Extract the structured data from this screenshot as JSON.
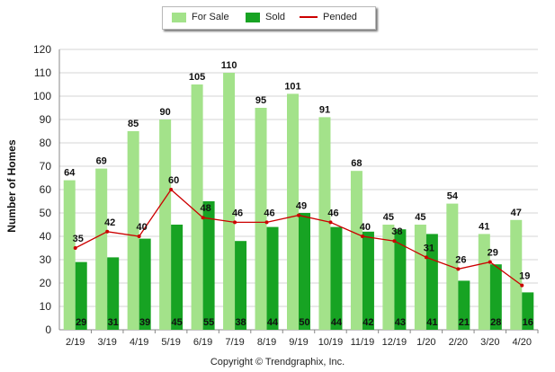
{
  "chart_data": {
    "type": "bar",
    "categories": [
      "2/19",
      "3/19",
      "4/19",
      "5/19",
      "6/19",
      "7/19",
      "8/19",
      "9/19",
      "10/19",
      "11/19",
      "12/19",
      "1/20",
      "2/20",
      "3/20",
      "4/20"
    ],
    "series": [
      {
        "name": "For Sale",
        "type": "bar",
        "color": "#a3e28a",
        "values": [
          64,
          69,
          85,
          90,
          105,
          110,
          95,
          101,
          91,
          68,
          45,
          45,
          54,
          41,
          47
        ]
      },
      {
        "name": "Sold",
        "type": "bar",
        "color": "#17a323",
        "values": [
          29,
          31,
          39,
          45,
          55,
          38,
          44,
          50,
          44,
          42,
          43,
          41,
          21,
          28,
          16
        ]
      },
      {
        "name": "Pended",
        "type": "line",
        "color": "#cc0000",
        "values": [
          35,
          42,
          40,
          60,
          48,
          46,
          46,
          49,
          46,
          40,
          38,
          31,
          26,
          29,
          19
        ]
      }
    ],
    "title": "",
    "xlabel": "",
    "ylabel": "Number of Homes",
    "ylim": [
      0,
      120
    ],
    "yticks": [
      0,
      10,
      20,
      30,
      40,
      50,
      60,
      70,
      80,
      90,
      100,
      110,
      120
    ],
    "grid": true,
    "legend_position": "top-center"
  },
  "legend": {
    "for_sale": "For Sale",
    "sold": "Sold",
    "pended": "Pended"
  },
  "copyright": "Copyright © Trendgraphix, Inc."
}
